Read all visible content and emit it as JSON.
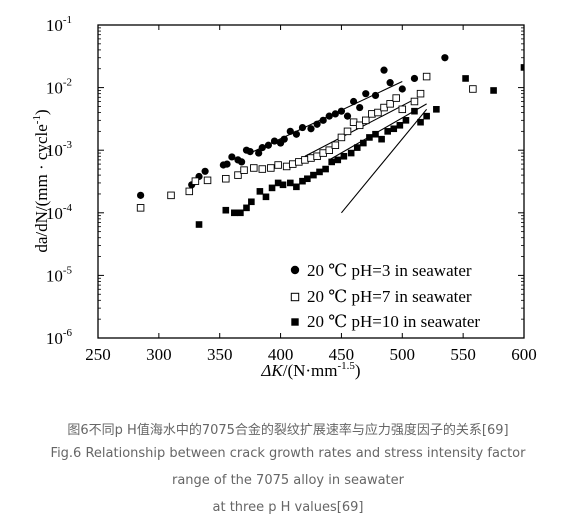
{
  "chart_data": {
    "type": "scatter",
    "xlabel_base": "ΔK",
    "xlabel_rest": "/(N·mm",
    "xlabel_exp": "-1.5",
    "xlabel_close": ")",
    "ylabel_main": "da/dN/(mm · cycle",
    "ylabel_exp": "-1",
    "ylabel_close": ")",
    "xlim": [
      250,
      600
    ],
    "ylim": [
      1e-06,
      0.1
    ],
    "y_scale": "log",
    "x_ticks": [
      "250",
      "300",
      "350",
      "400",
      "450",
      "500",
      "550",
      "600"
    ],
    "y_ticks": [
      {
        "base": "10",
        "exp": "-6"
      },
      {
        "base": "10",
        "exp": "-5"
      },
      {
        "base": "10",
        "exp": "-4"
      },
      {
        "base": "10",
        "exp": "-3"
      },
      {
        "base": "10",
        "exp": "-2"
      },
      {
        "base": "10",
        "exp": "-1"
      }
    ],
    "legend_position": "bottom-right",
    "series": [
      {
        "name": "20 ℃ pH=3 in seawater",
        "marker": "circle",
        "points": [
          [
            285,
            0.00019
          ],
          [
            327,
            0.00028
          ],
          [
            333,
            0.00038
          ],
          [
            338,
            0.00046
          ],
          [
            353,
            0.00058
          ],
          [
            356,
            0.0006
          ],
          [
            360,
            0.00078
          ],
          [
            365,
            0.0007
          ],
          [
            368,
            0.00065
          ],
          [
            372,
            0.001
          ],
          [
            375,
            0.00095
          ],
          [
            382,
            0.0009
          ],
          [
            385,
            0.0011
          ],
          [
            390,
            0.0012
          ],
          [
            395,
            0.0014
          ],
          [
            400,
            0.0013
          ],
          [
            403,
            0.0015
          ],
          [
            408,
            0.002
          ],
          [
            413,
            0.0018
          ],
          [
            418,
            0.0023
          ],
          [
            425,
            0.0022
          ],
          [
            430,
            0.0026
          ],
          [
            435,
            0.003
          ],
          [
            440,
            0.0035
          ],
          [
            445,
            0.0038
          ],
          [
            450,
            0.0042
          ],
          [
            455,
            0.0035
          ],
          [
            460,
            0.006
          ],
          [
            465,
            0.0048
          ],
          [
            470,
            0.008
          ],
          [
            478,
            0.0075
          ],
          [
            485,
            0.019
          ],
          [
            490,
            0.012
          ],
          [
            500,
            0.0095
          ],
          [
            510,
            0.014
          ],
          [
            535,
            0.03
          ]
        ]
      },
      {
        "name": "20 ℃ pH=7 in seawater",
        "marker": "square-open",
        "points": [
          [
            285,
            0.00012
          ],
          [
            310,
            0.00019
          ],
          [
            325,
            0.00022
          ],
          [
            330,
            0.00032
          ],
          [
            340,
            0.00033
          ],
          [
            355,
            0.00035
          ],
          [
            365,
            0.0004
          ],
          [
            370,
            0.00048
          ],
          [
            378,
            0.00052
          ],
          [
            385,
            0.0005
          ],
          [
            392,
            0.00052
          ],
          [
            398,
            0.00058
          ],
          [
            405,
            0.00055
          ],
          [
            410,
            0.0006
          ],
          [
            415,
            0.00065
          ],
          [
            420,
            0.0007
          ],
          [
            425,
            0.00075
          ],
          [
            430,
            0.0008
          ],
          [
            435,
            0.0009
          ],
          [
            440,
            0.001
          ],
          [
            445,
            0.0012
          ],
          [
            450,
            0.0016
          ],
          [
            455,
            0.002
          ],
          [
            460,
            0.0028
          ],
          [
            465,
            0.0025
          ],
          [
            470,
            0.003
          ],
          [
            475,
            0.0038
          ],
          [
            480,
            0.004
          ],
          [
            485,
            0.0048
          ],
          [
            490,
            0.0055
          ],
          [
            495,
            0.0068
          ],
          [
            500,
            0.0045
          ],
          [
            510,
            0.006
          ],
          [
            515,
            0.008
          ],
          [
            520,
            0.015
          ],
          [
            558,
            0.0095
          ]
        ]
      },
      {
        "name": "20 ℃ pH=10 in seawater",
        "marker": "square",
        "points": [
          [
            333,
            6.5e-05
          ],
          [
            355,
            0.00011
          ],
          [
            362,
            0.0001
          ],
          [
            367,
            0.0001
          ],
          [
            372,
            0.00012
          ],
          [
            376,
            0.00015
          ],
          [
            383,
            0.00022
          ],
          [
            388,
            0.00018
          ],
          [
            393,
            0.00025
          ],
          [
            398,
            0.0003
          ],
          [
            402,
            0.00028
          ],
          [
            408,
            0.0003
          ],
          [
            413,
            0.00026
          ],
          [
            418,
            0.00032
          ],
          [
            422,
            0.00035
          ],
          [
            427,
            0.0004
          ],
          [
            432,
            0.00045
          ],
          [
            437,
            0.0005
          ],
          [
            442,
            0.00065
          ],
          [
            447,
            0.0007
          ],
          [
            452,
            0.0008
          ],
          [
            458,
            0.0009
          ],
          [
            463,
            0.0011
          ],
          [
            468,
            0.0013
          ],
          [
            473,
            0.0016
          ],
          [
            478,
            0.0018
          ],
          [
            483,
            0.0015
          ],
          [
            488,
            0.002
          ],
          [
            493,
            0.0022
          ],
          [
            498,
            0.0025
          ],
          [
            503,
            0.003
          ],
          [
            510,
            0.0042
          ],
          [
            515,
            0.0028
          ],
          [
            520,
            0.0035
          ],
          [
            528,
            0.0045
          ],
          [
            552,
            0.014
          ],
          [
            575,
            0.009
          ],
          [
            600,
            0.021
          ]
        ]
      }
    ],
    "fit_lines": [
      {
        "series": "20 ℃ pH=3 in seawater",
        "from": [
          375,
          0.0009
        ],
        "to": [
          500,
          0.0125
        ]
      },
      {
        "series": "20 ℃ pH=7 in seawater",
        "from": [
          420,
          0.0008
        ],
        "to": [
          510,
          0.0065
        ]
      },
      {
        "series": "20 ℃ pH=7 in seawater",
        "from": [
          440,
          0.0007
        ],
        "to": [
          520,
          0.0055
        ]
      },
      {
        "series": "20 ℃ pH=10 in seawater",
        "from": [
          450,
          0.0001
        ],
        "to": [
          520,
          0.0045
        ]
      }
    ]
  },
  "caption": {
    "cn": "图6不同p H值海水中的7075合金的裂纹扩展速率与应力强度因子的关系[69]",
    "en_line1": "Fig.6 Relationship between crack growth rates and stress intensity factor",
    "en_line2": "range of the 7075 alloy in seawater",
    "en_line3": "at three p H values[69]"
  }
}
